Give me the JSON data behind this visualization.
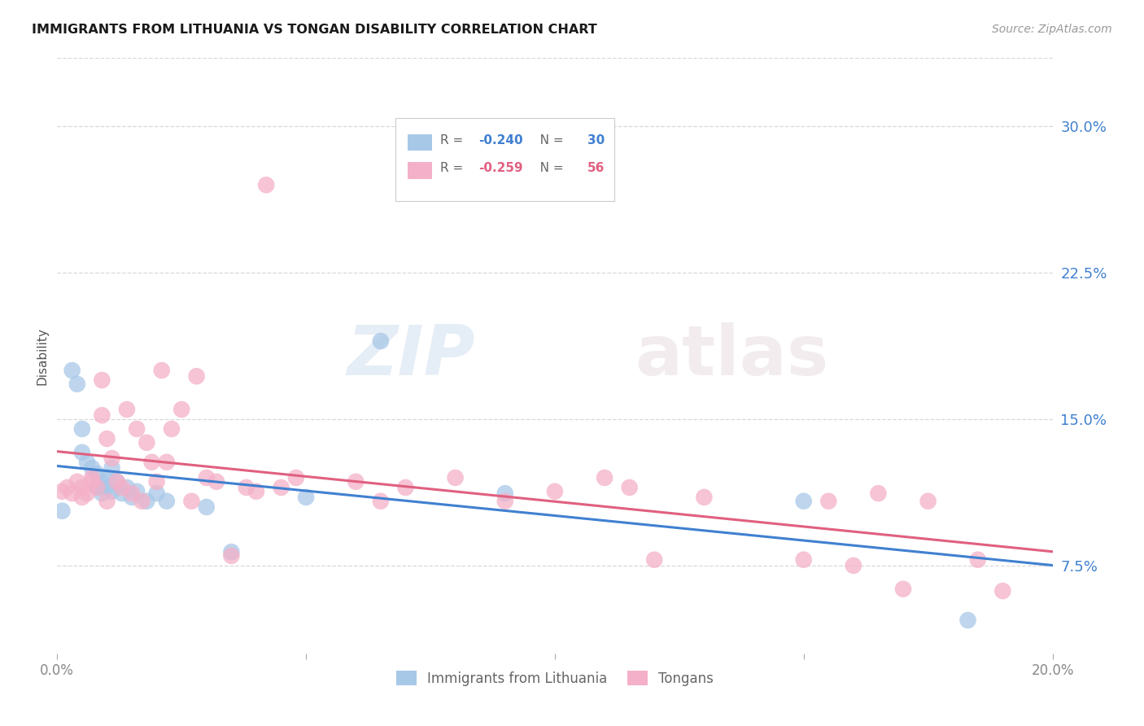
{
  "title": "IMMIGRANTS FROM LITHUANIA VS TONGAN DISABILITY CORRELATION CHART",
  "source": "Source: ZipAtlas.com",
  "ylabel": "Disability",
  "ytick_labels": [
    "7.5%",
    "15.0%",
    "22.5%",
    "30.0%"
  ],
  "ytick_values": [
    0.075,
    0.15,
    0.225,
    0.3
  ],
  "xlim": [
    0.0,
    0.2
  ],
  "ylim": [
    0.03,
    0.335
  ],
  "legend_blue_r": "-0.240",
  "legend_blue_n": "30",
  "legend_pink_r": "-0.259",
  "legend_pink_n": "56",
  "blue_color": "#a8c8e8",
  "pink_color": "#f4b0c8",
  "blue_line_color": "#4080d0",
  "pink_line_color": "#e06080",
  "watermark_zip": "ZIP",
  "watermark_atlas": "atlas",
  "blue_scatter_x": [
    0.001,
    0.003,
    0.004,
    0.005,
    0.005,
    0.006,
    0.007,
    0.008,
    0.008,
    0.009,
    0.009,
    0.01,
    0.01,
    0.011,
    0.011,
    0.012,
    0.013,
    0.014,
    0.015,
    0.016,
    0.018,
    0.02,
    0.022,
    0.03,
    0.035,
    0.05,
    0.065,
    0.09,
    0.15,
    0.183
  ],
  "blue_scatter_y": [
    0.103,
    0.175,
    0.168,
    0.145,
    0.133,
    0.128,
    0.125,
    0.122,
    0.115,
    0.118,
    0.112,
    0.115,
    0.12,
    0.113,
    0.125,
    0.118,
    0.112,
    0.115,
    0.11,
    0.113,
    0.108,
    0.112,
    0.108,
    0.105,
    0.082,
    0.11,
    0.19,
    0.112,
    0.108,
    0.047
  ],
  "pink_scatter_x": [
    0.001,
    0.002,
    0.003,
    0.004,
    0.005,
    0.005,
    0.006,
    0.007,
    0.007,
    0.008,
    0.009,
    0.009,
    0.01,
    0.01,
    0.011,
    0.012,
    0.013,
    0.014,
    0.015,
    0.016,
    0.017,
    0.018,
    0.019,
    0.02,
    0.021,
    0.022,
    0.023,
    0.025,
    0.027,
    0.028,
    0.03,
    0.032,
    0.035,
    0.038,
    0.04,
    0.042,
    0.045,
    0.048,
    0.06,
    0.065,
    0.07,
    0.08,
    0.09,
    0.1,
    0.11,
    0.115,
    0.12,
    0.13,
    0.15,
    0.155,
    0.16,
    0.165,
    0.17,
    0.175,
    0.185,
    0.19
  ],
  "pink_scatter_y": [
    0.113,
    0.115,
    0.112,
    0.118,
    0.11,
    0.115,
    0.112,
    0.12,
    0.118,
    0.115,
    0.17,
    0.152,
    0.14,
    0.108,
    0.13,
    0.118,
    0.115,
    0.155,
    0.112,
    0.145,
    0.108,
    0.138,
    0.128,
    0.118,
    0.175,
    0.128,
    0.145,
    0.155,
    0.108,
    0.172,
    0.12,
    0.118,
    0.08,
    0.115,
    0.113,
    0.27,
    0.115,
    0.12,
    0.118,
    0.108,
    0.115,
    0.12,
    0.108,
    0.113,
    0.12,
    0.115,
    0.078,
    0.11,
    0.078,
    0.108,
    0.075,
    0.112,
    0.063,
    0.108,
    0.078,
    0.062
  ],
  "background_color": "#ffffff",
  "grid_color": "#d8d8d8"
}
